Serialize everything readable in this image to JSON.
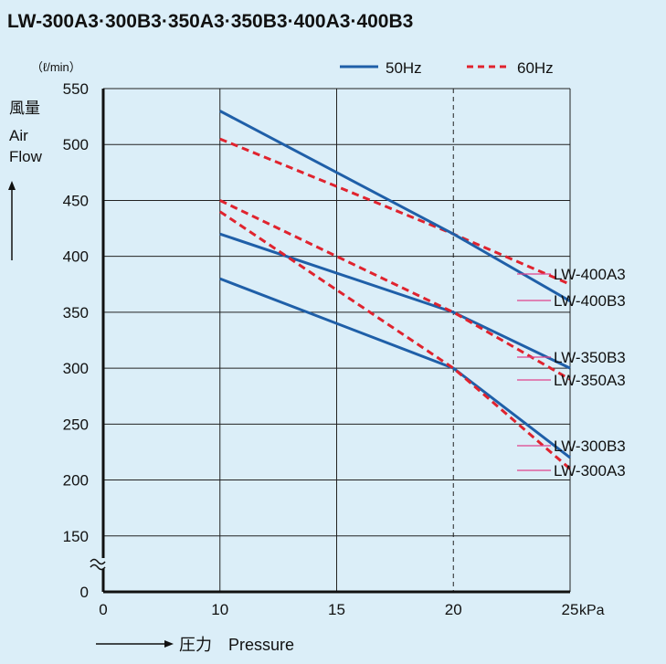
{
  "chart_data": {
    "type": "line",
    "title": "LW-300A3·300B3·350A3·350B3·400A3·400B3",
    "y_unit": "（ℓ/min）",
    "ylabel_lines": [
      "風量",
      "Air",
      "Flow"
    ],
    "xlabel": "→  圧力　Pressure",
    "x_unit": "kPa",
    "x_ticks": [
      0,
      10,
      15,
      20,
      25
    ],
    "y_ticks": [
      0,
      150,
      200,
      250,
      300,
      350,
      400,
      450,
      500,
      550
    ],
    "xlim": [
      5,
      25
    ],
    "ylim": [
      100,
      550
    ],
    "axis_break": "between 0 and 150 on y-axis; between 0 and 10 on x-axis",
    "grid": true,
    "reference_line_x": 20,
    "legend_position": "top-right",
    "legend": [
      {
        "label": "50Hz",
        "style": "solid",
        "color": "#1f5fa8"
      },
      {
        "label": "60Hz",
        "style": "dashed",
        "color": "#e0232e"
      }
    ],
    "series": [
      {
        "name": "LW-400A3",
        "freq": "60Hz",
        "x": [
          10,
          20,
          25
        ],
        "y": [
          505,
          420,
          375
        ]
      },
      {
        "name": "LW-400B3",
        "freq": "50Hz",
        "x": [
          10,
          20,
          25
        ],
        "y": [
          530,
          420,
          360
        ]
      },
      {
        "name": "LW-350B3",
        "freq": "50Hz",
        "x": [
          10,
          20,
          25
        ],
        "y": [
          420,
          350,
          300
        ]
      },
      {
        "name": "LW-350A3",
        "freq": "60Hz",
        "x": [
          10,
          20,
          25
        ],
        "y": [
          450,
          350,
          290
        ]
      },
      {
        "name": "LW-300B3",
        "freq": "50Hz",
        "x": [
          10,
          20,
          25
        ],
        "y": [
          380,
          300,
          220
        ]
      },
      {
        "name": "LW-300A3",
        "freq": "60Hz",
        "x": [
          10,
          20,
          25
        ],
        "y": [
          440,
          300,
          210
        ]
      }
    ]
  }
}
